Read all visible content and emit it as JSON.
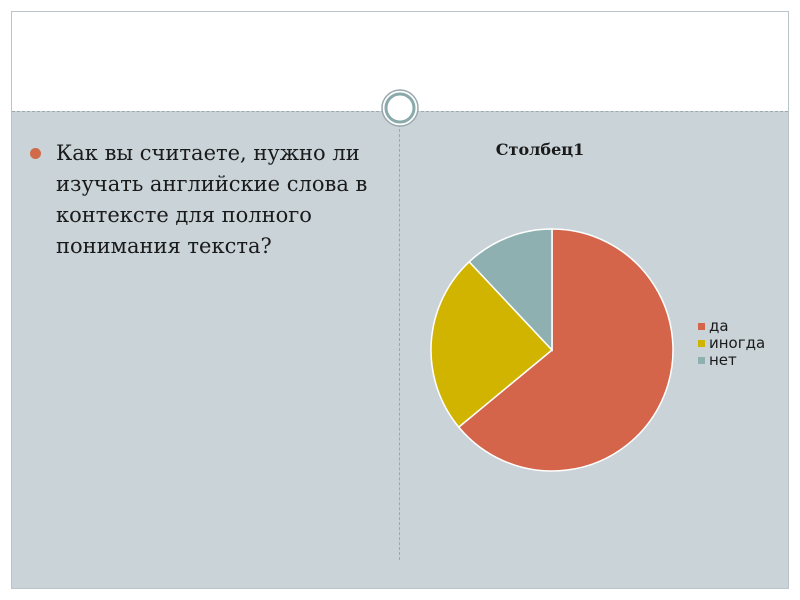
{
  "slide": {
    "bullet_text": "Как вы считаете, нужно ли изучать английские слова в контексте для полного понимания текста?"
  },
  "chart_data": {
    "type": "pie",
    "title": "Столбец1",
    "categories": [
      "да",
      "иногда",
      "нет"
    ],
    "values": [
      64,
      24,
      12
    ],
    "colors": [
      "#d4654a",
      "#d1b400",
      "#8fb0b0"
    ],
    "legend": "right"
  }
}
